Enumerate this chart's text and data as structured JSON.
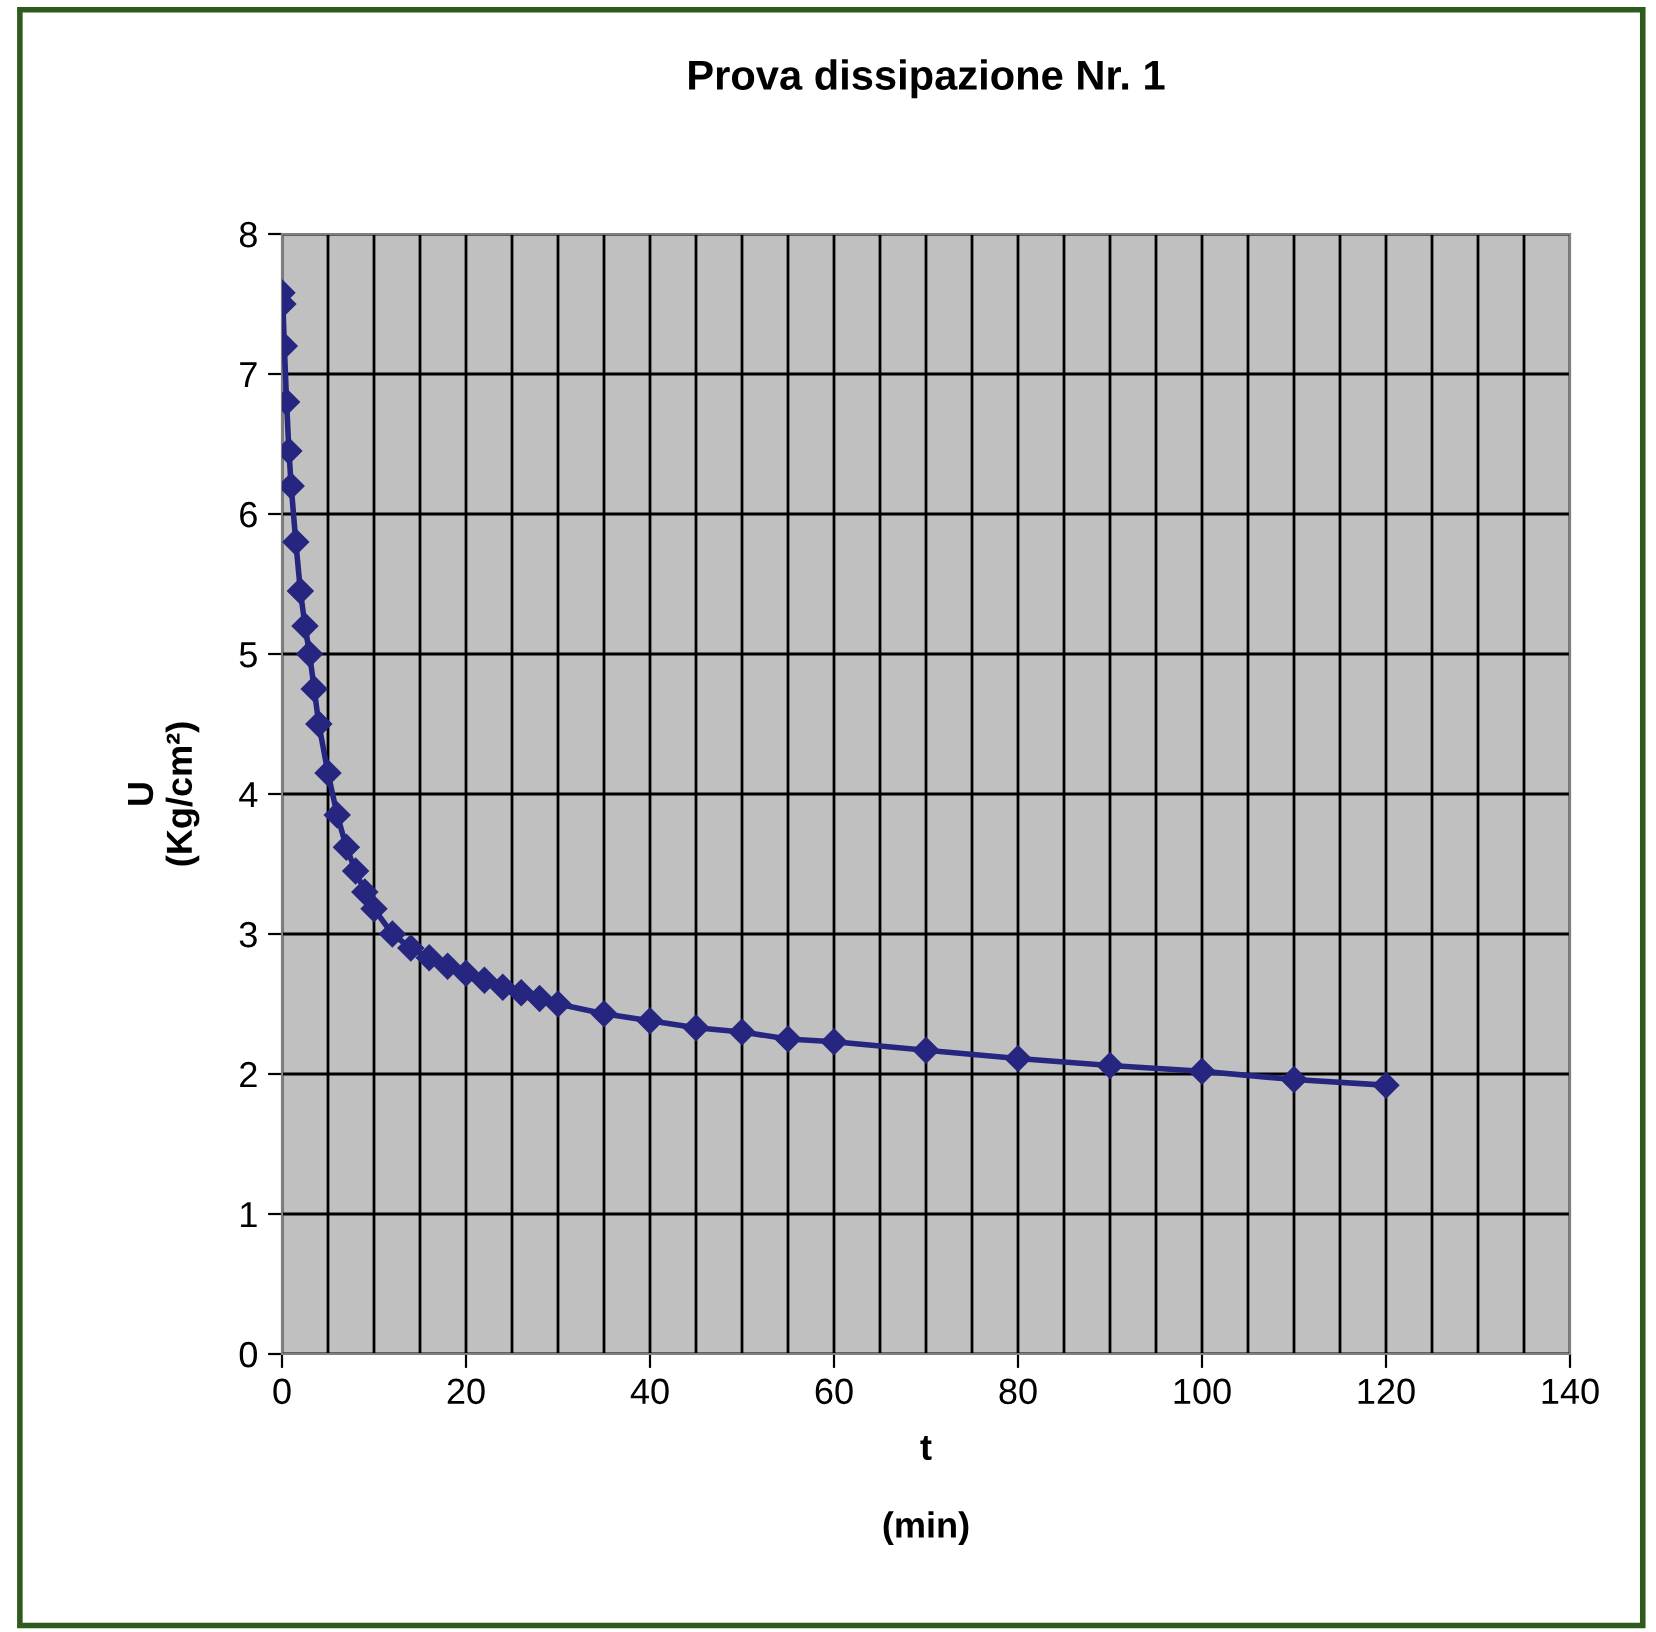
{
  "chart_data": {
    "type": "line",
    "title": "Prova dissipazione Nr. 1",
    "xlabel": "t\n\n(min)",
    "ylabel": "U\n(Kg/cm²)",
    "x": [
      0,
      0.1,
      0.25,
      0.5,
      0.75,
      1,
      1.5,
      2,
      2.5,
      3,
      3.5,
      4,
      5,
      6,
      7,
      8,
      9,
      10,
      12,
      14,
      16,
      18,
      20,
      22,
      24,
      26,
      28,
      30,
      35,
      40,
      45,
      50,
      55,
      60,
      70,
      80,
      90,
      100,
      110,
      120
    ],
    "series": [
      {
        "color": "#262680",
        "values": [
          7.58,
          7.5,
          7.2,
          6.8,
          6.45,
          6.2,
          5.8,
          5.45,
          5.2,
          5.0,
          4.75,
          4.5,
          4.15,
          3.85,
          3.62,
          3.45,
          3.3,
          3.18,
          3.0,
          2.9,
          2.83,
          2.77,
          2.72,
          2.67,
          2.62,
          2.58,
          2.54,
          2.5,
          2.43,
          2.38,
          2.33,
          2.3,
          2.25,
          2.23,
          2.17,
          2.11,
          2.06,
          2.02,
          1.96,
          1.92
        ]
      }
    ],
    "xlim": [
      0,
      140
    ],
    "ylim": [
      0,
      8
    ],
    "xticks": [
      0,
      20,
      40,
      60,
      80,
      100,
      120,
      140
    ],
    "yticks": [
      0,
      1,
      2,
      3,
      4,
      5,
      6,
      7,
      8
    ],
    "grid": true,
    "marker": "diamond",
    "line_style": "solid"
  }
}
